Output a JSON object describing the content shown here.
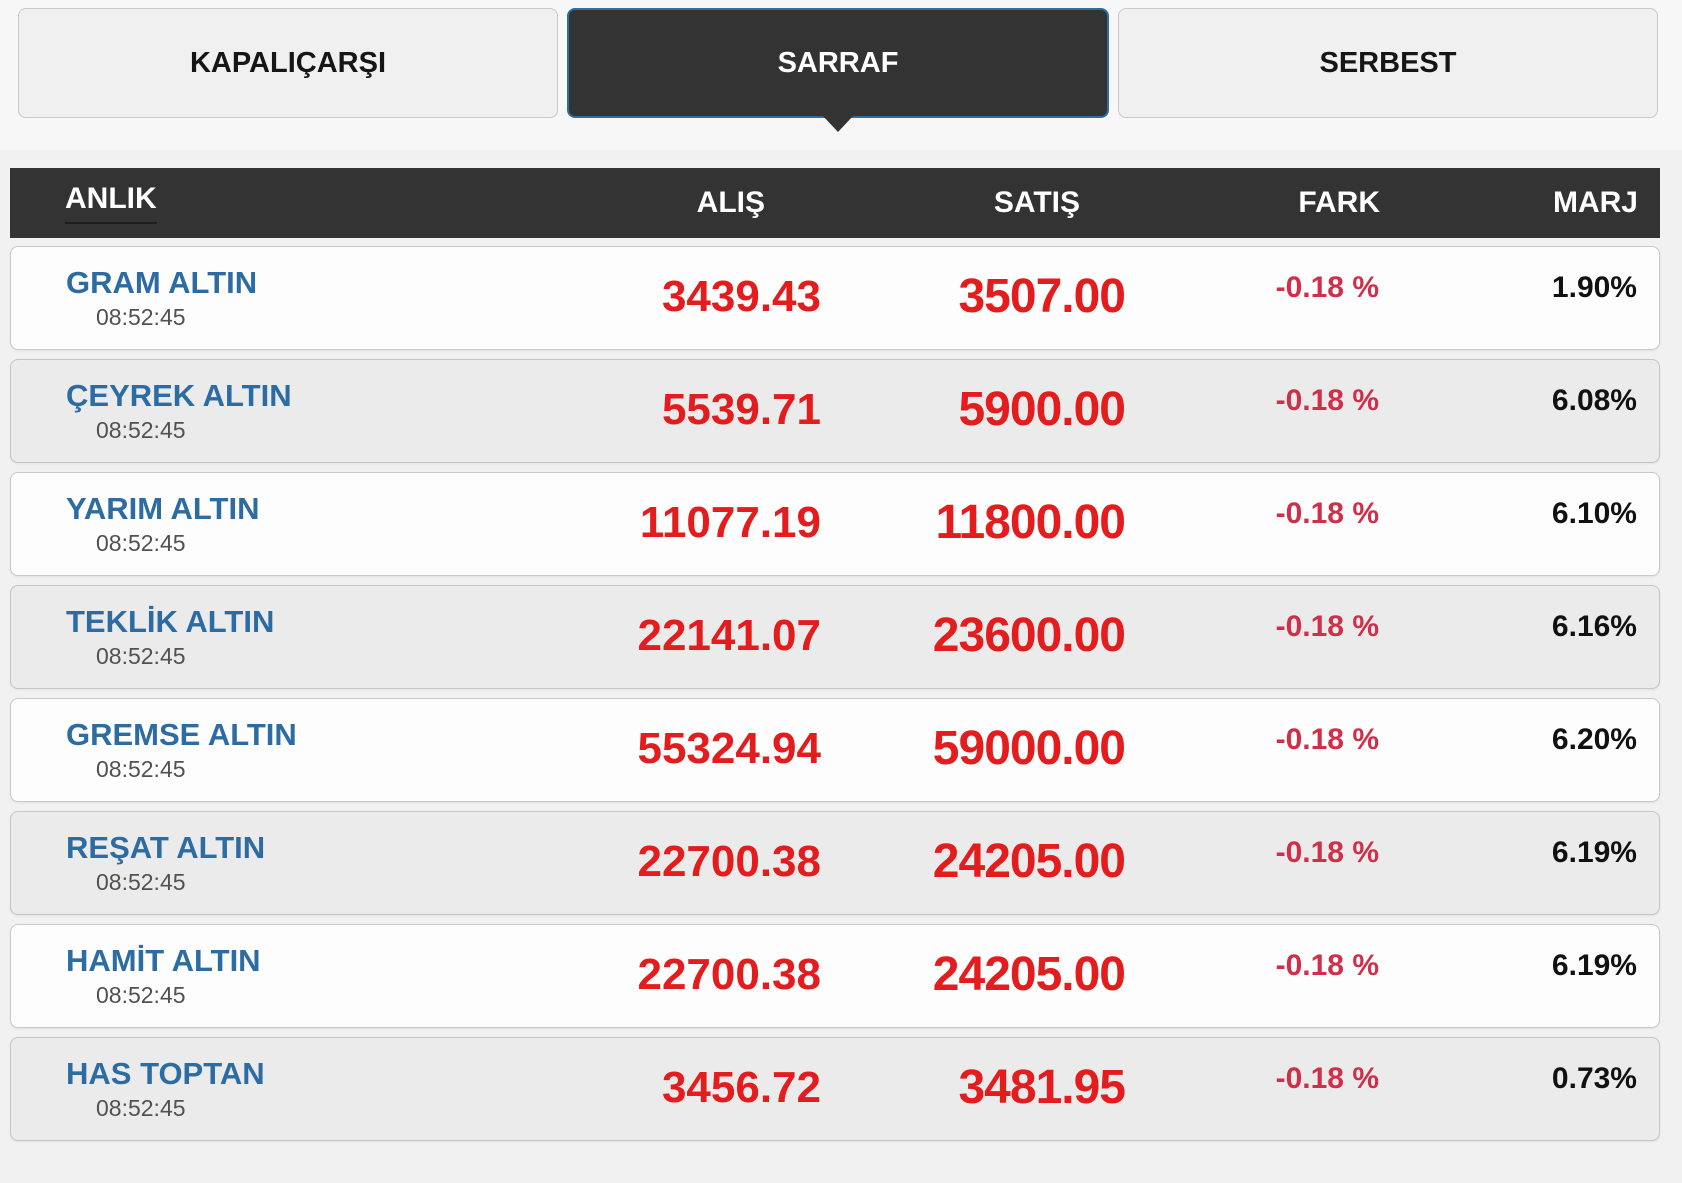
{
  "widget": {
    "tabs": [
      {
        "label": "KAPALIÇARŞI",
        "active": false
      },
      {
        "label": "SARRAF",
        "active": true
      },
      {
        "label": "SERBEST",
        "active": false
      }
    ],
    "table": {
      "headers": {
        "anlik": "ANLIK",
        "alis": "ALIŞ",
        "satis": "SATIŞ",
        "fark": "FARK",
        "marj": "MARJ"
      },
      "rows": [
        {
          "name": "GRAM ALTIN",
          "time": "08:52:45",
          "alis": "3439.43",
          "satis": "3507.00",
          "fark": "-0.18 %",
          "marj": "1.90%"
        },
        {
          "name": "ÇEYREK ALTIN",
          "time": "08:52:45",
          "alis": "5539.71",
          "satis": "5900.00",
          "fark": "-0.18 %",
          "marj": "6.08%"
        },
        {
          "name": "YARIM ALTIN",
          "time": "08:52:45",
          "alis": "11077.19",
          "satis": "11800.00",
          "fark": "-0.18 %",
          "marj": "6.10%"
        },
        {
          "name": "TEKLİK ALTIN",
          "time": "08:52:45",
          "alis": "22141.07",
          "satis": "23600.00",
          "fark": "-0.18 %",
          "marj": "6.16%"
        },
        {
          "name": "GREMSE ALTIN",
          "time": "08:52:45",
          "alis": "55324.94",
          "satis": "59000.00",
          "fark": "-0.18 %",
          "marj": "6.20%"
        },
        {
          "name": "REŞAT ALTIN",
          "time": "08:52:45",
          "alis": "22700.38",
          "satis": "24205.00",
          "fark": "-0.18 %",
          "marj": "6.19%"
        },
        {
          "name": "HAMİT ALTIN",
          "time": "08:52:45",
          "alis": "22700.38",
          "satis": "24205.00",
          "fark": "-0.18 %",
          "marj": "6.19%"
        },
        {
          "name": "HAS TOPTAN",
          "time": "08:52:45",
          "alis": "3456.72",
          "satis": "3481.95",
          "fark": "-0.18 %",
          "marj": "0.73%"
        }
      ]
    },
    "colors": {
      "dark": "#333333",
      "accent_blue": "#2e6da4",
      "name_blue": "#2d6ba3",
      "price_red": "#e31d1d",
      "change_red": "#d02f4a",
      "marj_black": "#111111"
    }
  }
}
